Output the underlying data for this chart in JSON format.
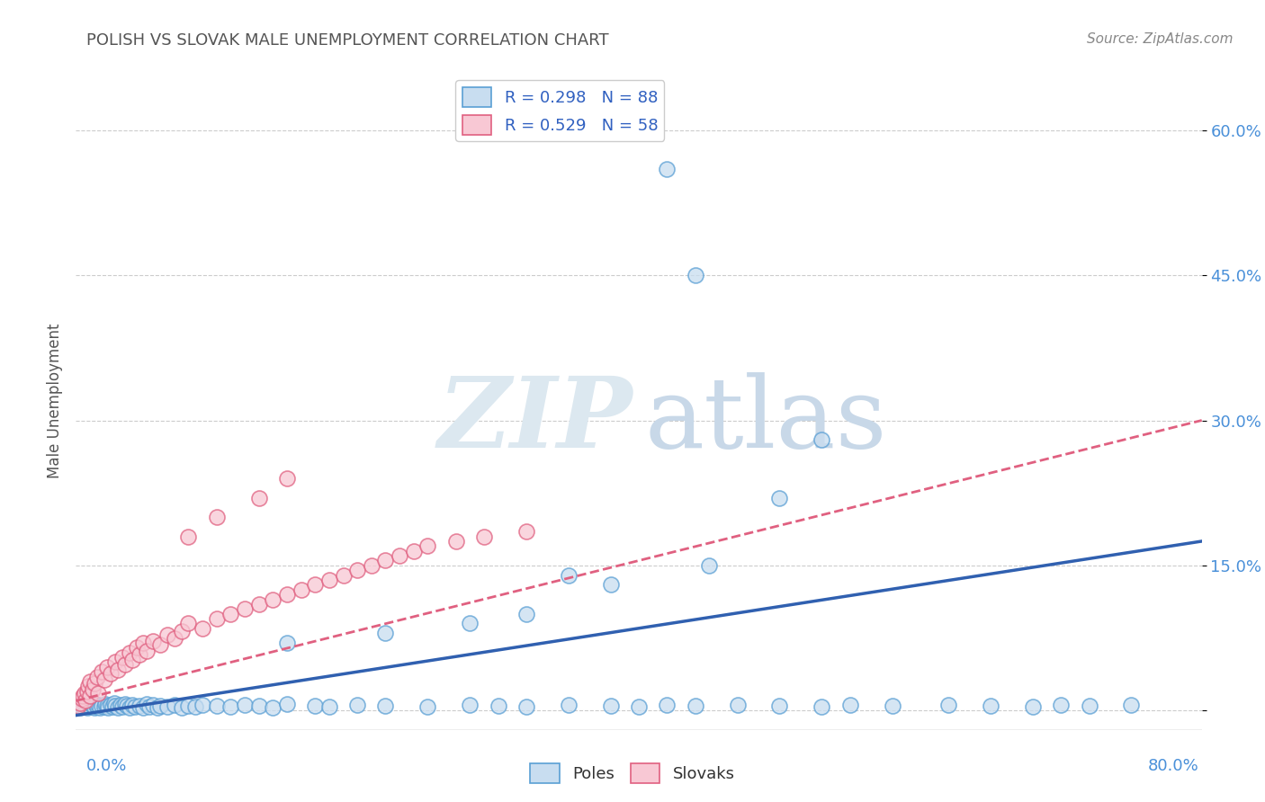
{
  "title": "POLISH VS SLOVAK MALE UNEMPLOYMENT CORRELATION CHART",
  "source": "Source: ZipAtlas.com",
  "ylabel": "Male Unemployment",
  "xlim": [
    0,
    0.8
  ],
  "ylim": [
    -0.02,
    0.66
  ],
  "ytick_values": [
    0.0,
    0.15,
    0.3,
    0.45,
    0.6
  ],
  "ytick_labels": [
    "",
    "15.0%",
    "30.0%",
    "45.0%",
    "60.0%"
  ],
  "poles_color_fill": "#c8ddf0",
  "poles_color_edge": "#5a9fd4",
  "slovaks_color_fill": "#f8c8d4",
  "slovaks_color_edge": "#e06080",
  "poles_line_color": "#3060b0",
  "slovaks_line_color": "#e06080",
  "background_color": "#ffffff",
  "grid_color": "#cccccc",
  "watermark_zip_color": "#dce8f0",
  "watermark_atlas_color": "#c8d8e8",
  "legend_poles_label": "R = 0.298   N = 88",
  "legend_slovaks_label": "R = 0.529   N = 58",
  "bottom_legend_poles": "Poles",
  "bottom_legend_slovaks": "Slovaks",
  "poles_line_x0": 0.0,
  "poles_line_y0": -0.005,
  "poles_line_x1": 0.8,
  "poles_line_y1": 0.175,
  "slovaks_line_x0": 0.0,
  "slovaks_line_y0": 0.01,
  "slovaks_line_x1": 0.8,
  "slovaks_line_y1": 0.3,
  "poles_x": [
    0.001,
    0.002,
    0.003,
    0.004,
    0.005,
    0.006,
    0.007,
    0.008,
    0.009,
    0.01,
    0.01,
    0.012,
    0.013,
    0.014,
    0.015,
    0.016,
    0.017,
    0.018,
    0.02,
    0.021,
    0.022,
    0.023,
    0.025,
    0.026,
    0.027,
    0.028,
    0.03,
    0.032,
    0.033,
    0.035,
    0.036,
    0.038,
    0.04,
    0.042,
    0.045,
    0.048,
    0.05,
    0.052,
    0.055,
    0.058,
    0.06,
    0.065,
    0.07,
    0.075,
    0.08,
    0.085,
    0.09,
    0.1,
    0.11,
    0.12,
    0.13,
    0.14,
    0.15,
    0.17,
    0.18,
    0.2,
    0.22,
    0.25,
    0.28,
    0.3,
    0.32,
    0.35,
    0.38,
    0.4,
    0.42,
    0.44,
    0.47,
    0.5,
    0.53,
    0.55,
    0.58,
    0.62,
    0.65,
    0.68,
    0.7,
    0.72,
    0.75,
    0.42,
    0.44,
    0.35,
    0.38,
    0.45,
    0.5,
    0.53,
    0.32,
    0.28,
    0.22,
    0.15
  ],
  "poles_y": [
    0.005,
    0.008,
    0.003,
    0.006,
    0.004,
    0.007,
    0.005,
    0.003,
    0.006,
    0.004,
    0.008,
    0.005,
    0.003,
    0.007,
    0.004,
    0.006,
    0.003,
    0.005,
    0.004,
    0.007,
    0.005,
    0.003,
    0.006,
    0.004,
    0.008,
    0.005,
    0.003,
    0.006,
    0.004,
    0.007,
    0.005,
    0.003,
    0.006,
    0.004,
    0.005,
    0.003,
    0.007,
    0.004,
    0.006,
    0.003,
    0.005,
    0.004,
    0.006,
    0.003,
    0.005,
    0.004,
    0.006,
    0.005,
    0.004,
    0.006,
    0.005,
    0.003,
    0.007,
    0.005,
    0.004,
    0.006,
    0.005,
    0.004,
    0.006,
    0.005,
    0.004,
    0.006,
    0.005,
    0.004,
    0.006,
    0.005,
    0.006,
    0.005,
    0.004,
    0.006,
    0.005,
    0.006,
    0.005,
    0.004,
    0.006,
    0.005,
    0.006,
    0.56,
    0.45,
    0.14,
    0.13,
    0.15,
    0.22,
    0.28,
    0.1,
    0.09,
    0.08,
    0.07
  ],
  "slovaks_x": [
    0.002,
    0.003,
    0.004,
    0.005,
    0.006,
    0.007,
    0.008,
    0.009,
    0.01,
    0.01,
    0.012,
    0.013,
    0.015,
    0.016,
    0.018,
    0.02,
    0.022,
    0.025,
    0.028,
    0.03,
    0.033,
    0.035,
    0.038,
    0.04,
    0.043,
    0.045,
    0.048,
    0.05,
    0.055,
    0.06,
    0.065,
    0.07,
    0.075,
    0.08,
    0.09,
    0.1,
    0.11,
    0.12,
    0.13,
    0.14,
    0.15,
    0.16,
    0.17,
    0.18,
    0.19,
    0.2,
    0.21,
    0.22,
    0.23,
    0.24,
    0.25,
    0.27,
    0.29,
    0.32,
    0.1,
    0.13,
    0.08,
    0.15
  ],
  "slovaks_y": [
    0.005,
    0.008,
    0.012,
    0.015,
    0.018,
    0.01,
    0.02,
    0.025,
    0.03,
    0.015,
    0.022,
    0.028,
    0.035,
    0.018,
    0.04,
    0.032,
    0.045,
    0.038,
    0.05,
    0.042,
    0.055,
    0.048,
    0.06,
    0.052,
    0.065,
    0.058,
    0.07,
    0.062,
    0.072,
    0.068,
    0.078,
    0.075,
    0.082,
    0.09,
    0.085,
    0.095,
    0.1,
    0.105,
    0.11,
    0.115,
    0.12,
    0.125,
    0.13,
    0.135,
    0.14,
    0.145,
    0.15,
    0.155,
    0.16,
    0.165,
    0.17,
    0.175,
    0.18,
    0.185,
    0.2,
    0.22,
    0.18,
    0.24
  ]
}
